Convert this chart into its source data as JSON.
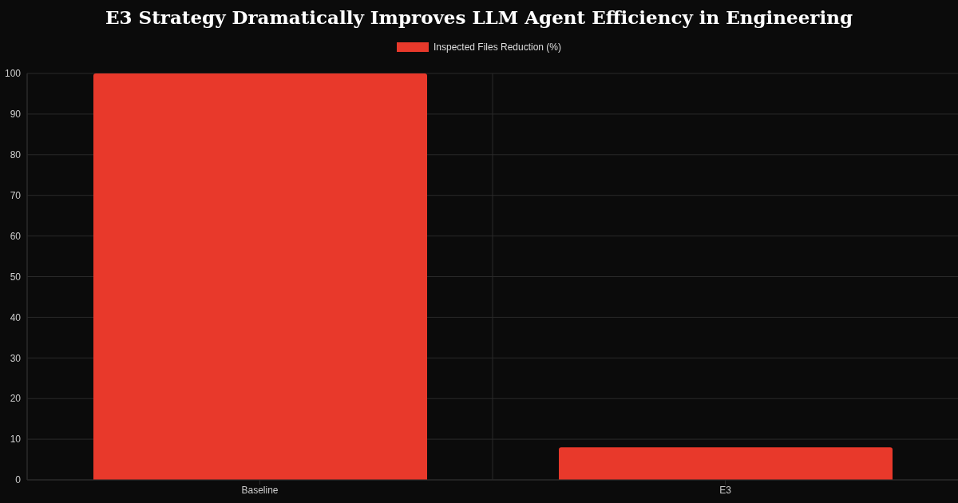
{
  "chart_data": {
    "type": "bar",
    "title": "E3 Strategy Dramatically Improves LLM Agent Efficiency in Engineering",
    "categories": [
      "Baseline",
      "E3"
    ],
    "series": [
      {
        "name": "Inspected Files Reduction (%)",
        "color": "#e8392b",
        "values": [
          100,
          8
        ]
      }
    ],
    "ylim": [
      0,
      100
    ],
    "yticks": [
      0,
      10,
      20,
      30,
      40,
      50,
      60,
      70,
      80,
      90,
      100
    ],
    "grid": true,
    "legend": "top"
  }
}
